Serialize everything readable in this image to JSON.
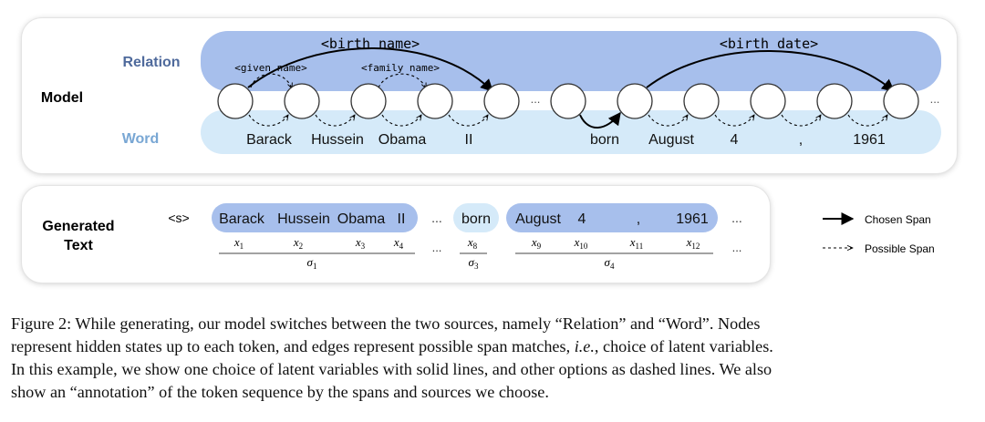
{
  "model_panel": {
    "model_label": "Model",
    "relation_label": "Relation",
    "word_label": "Word",
    "relations": {
      "birth_name": "<birth name>",
      "given_name": "<given name>",
      "family_name": "<family name>",
      "birth_date": "<birth date>"
    },
    "words": [
      "Barack",
      "Hussein",
      "Obama",
      "II",
      "born",
      "August",
      "4",
      ",",
      "1961"
    ],
    "ellipsis": "..."
  },
  "generated_panel": {
    "label_line1": "Generated",
    "label_line2": "Text",
    "start_token": "<s>",
    "span1": {
      "tokens": [
        "Barack",
        "Hussein",
        "Obama",
        "II"
      ],
      "vars": [
        "x",
        "x",
        "x",
        "x"
      ],
      "subs": [
        "1",
        "2",
        "3",
        "4"
      ],
      "sigma": "σ",
      "sigma_sub": "1"
    },
    "span3": {
      "tokens": [
        "born"
      ],
      "vars": [
        "x"
      ],
      "subs": [
        "8"
      ],
      "sigma": "σ",
      "sigma_sub": "3"
    },
    "span4": {
      "tokens": [
        "August",
        "4",
        ",",
        "1961"
      ],
      "vars": [
        "x",
        "x",
        "x",
        "x"
      ],
      "subs": [
        "9",
        "10",
        "11",
        "12"
      ],
      "sigma": "σ",
      "sigma_sub": "4"
    },
    "ellipsis": "...",
    "colors": {
      "relation_fill": "#a7bfec",
      "word_fill": "#d5eaf9"
    }
  },
  "legend": {
    "chosen": "Chosen Span",
    "possible": "Possible Span"
  },
  "colors": {
    "relation_band": "#a7bfec",
    "word_band": "#d5eaf9",
    "relation_text": "#4f6a9c",
    "word_text": "#79a7d4"
  },
  "caption": {
    "line1": "Figure 2: While generating, our model switches between the two sources, namely “Relation” and “Word”. Nodes",
    "line2_pre": "represent hidden states up to each token, and edges represent possible span matches, ",
    "line2_em": "i.e.",
    "line2_post": ", choice of latent variables.",
    "line3": "In this example, we show one choice of latent variables with solid lines, and other options as dashed lines. We also",
    "line4": "show an “annotation” of the token sequence by the spans and sources we choose."
  }
}
